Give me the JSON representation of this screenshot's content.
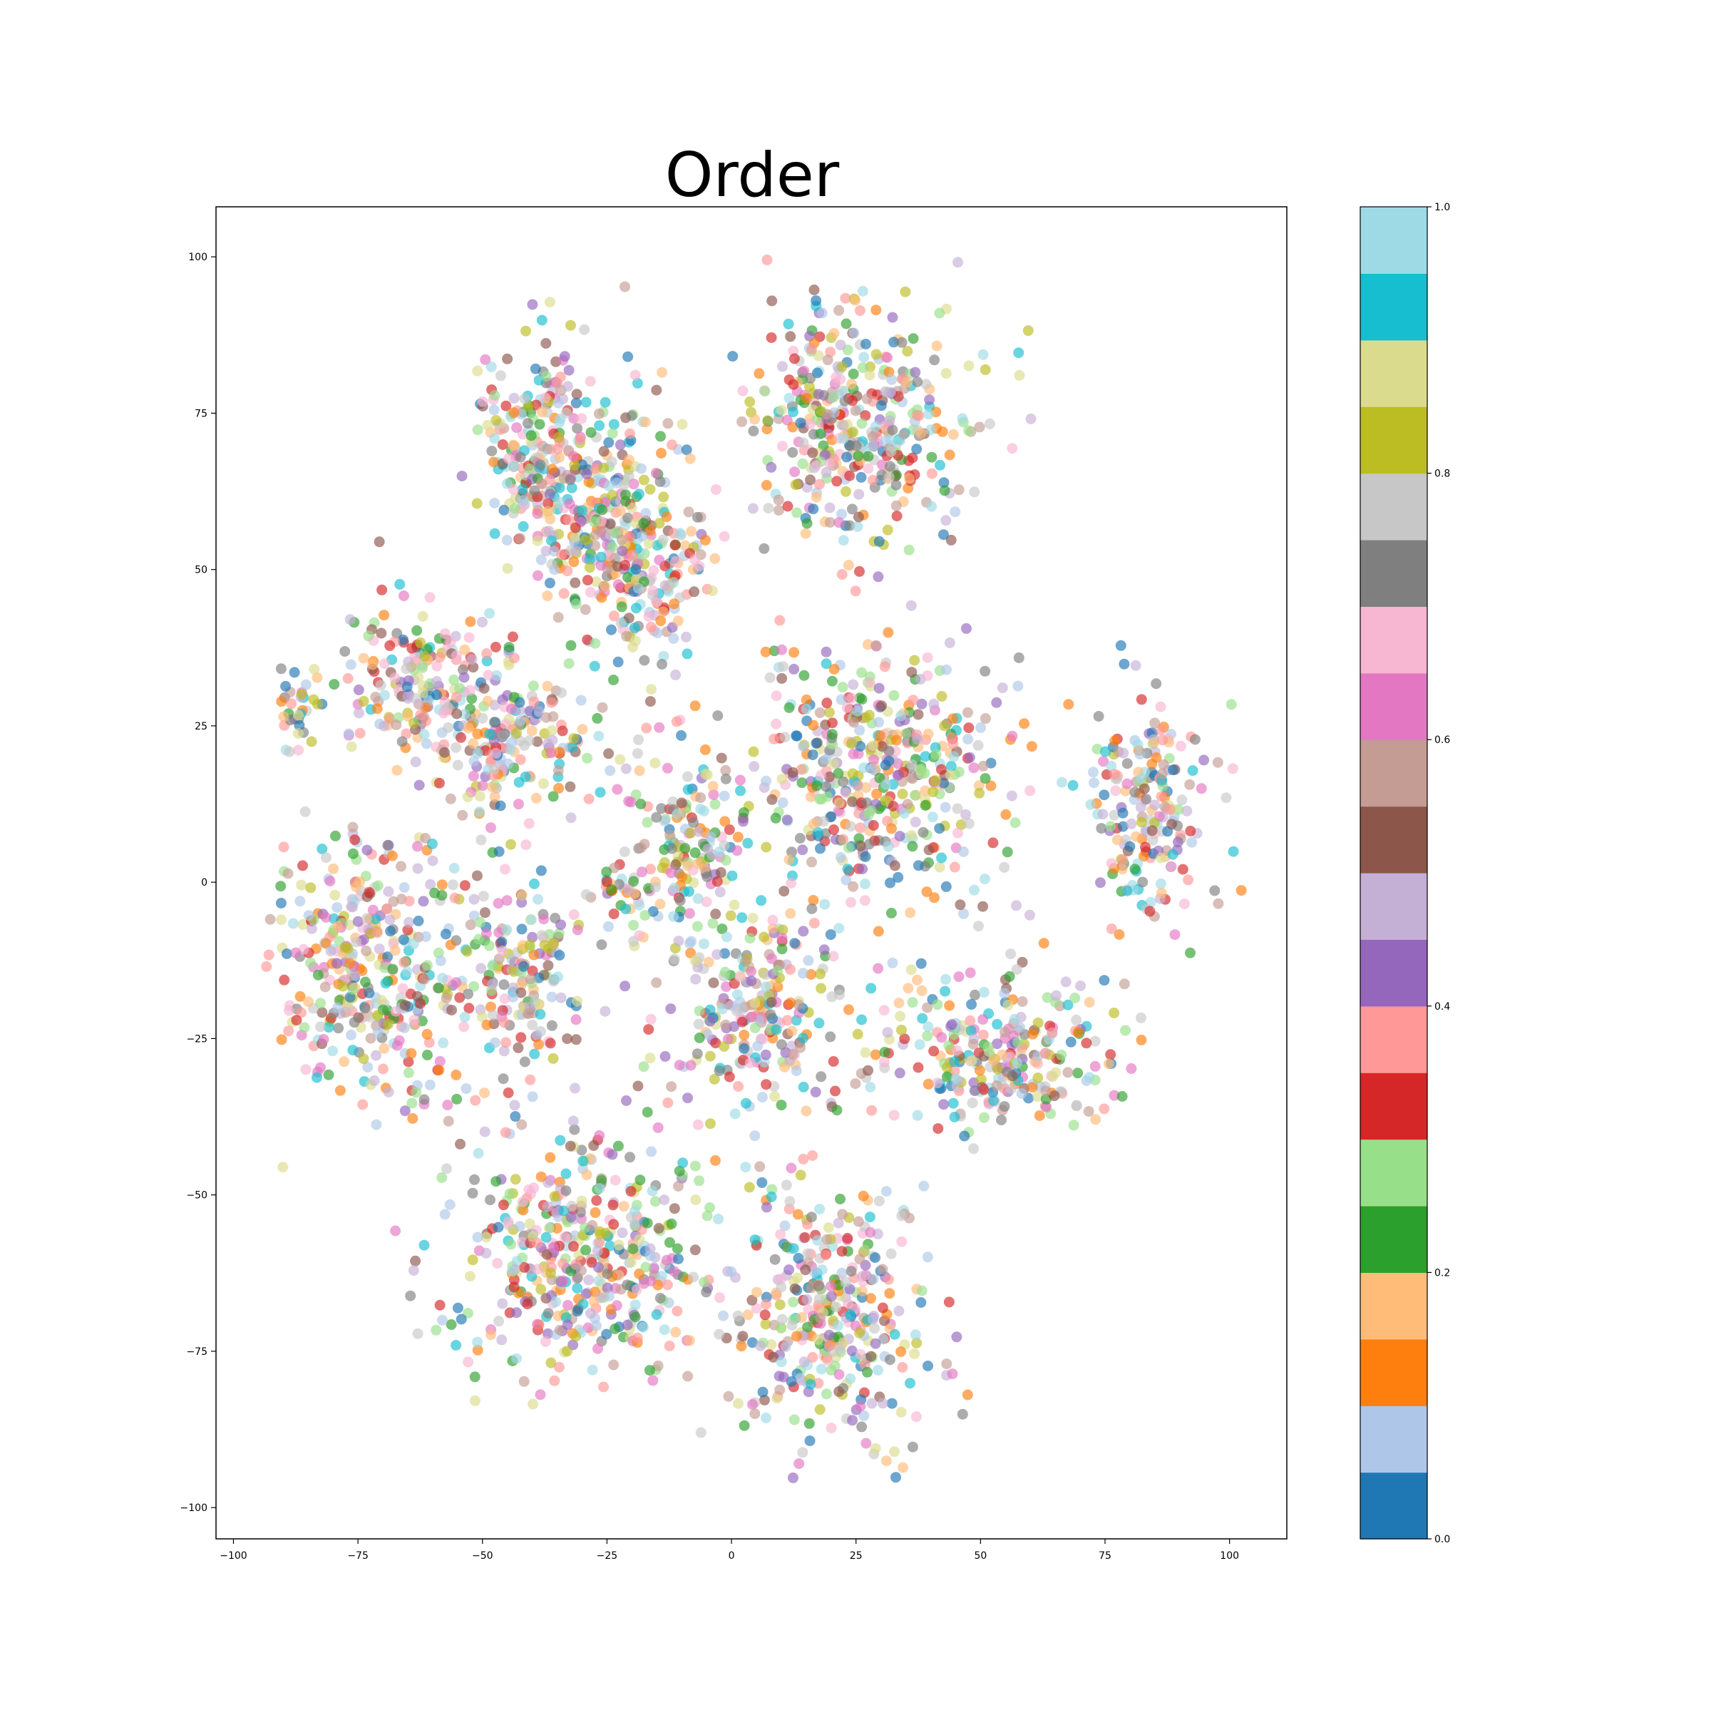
{
  "chart_data": {
    "type": "scatter",
    "title": "Order",
    "xlabel": "",
    "ylabel": "",
    "xlim": [
      -103.5,
      111.5
    ],
    "ylim": [
      -105,
      108
    ],
    "xticks": [
      -100,
      -75,
      -50,
      -25,
      0,
      25,
      50,
      75,
      100
    ],
    "yticks": [
      -100,
      -75,
      -50,
      -25,
      0,
      25,
      50,
      75,
      100
    ],
    "xtick_labels": [
      "−100",
      "−75",
      "−50",
      "−25",
      "0",
      "25",
      "50",
      "75",
      "100"
    ],
    "ytick_labels": [
      "−100",
      "−75",
      "−50",
      "−25",
      "0",
      "25",
      "50",
      "75",
      "100"
    ],
    "grid": false,
    "marker_alpha": 0.65,
    "colormap": {
      "name": "tab20",
      "range": [
        0,
        1
      ],
      "ticks": [
        0.0,
        0.2,
        0.4,
        0.6,
        0.8,
        1.0
      ],
      "tick_labels": [
        "0.0",
        "0.2",
        "0.4",
        "0.6",
        "0.8",
        "1.0"
      ],
      "colors": [
        "#1f77b4",
        "#aec7e8",
        "#ff7f0e",
        "#ffbb78",
        "#2ca02c",
        "#98df8a",
        "#d62728",
        "#ff9896",
        "#9467bd",
        "#c5b0d5",
        "#8c564b",
        "#c49c94",
        "#e377c2",
        "#f7b6d2",
        "#7f7f7f",
        "#c7c7c7",
        "#bcbd22",
        "#dbdb8d",
        "#17becf",
        "#9edae5"
      ]
    },
    "point_count": 4200,
    "clusters": [
      {
        "x": 25,
        "y": 73,
        "sx": 15,
        "sy": 13
      },
      {
        "x": -28,
        "y": 62,
        "sx": 11,
        "sy": 13
      },
      {
        "x": -40,
        "y": 72,
        "sx": 7,
        "sy": 10
      },
      {
        "x": -18,
        "y": 50,
        "sx": 9,
        "sy": 9
      },
      {
        "x": -62,
        "y": 32,
        "sx": 11,
        "sy": 8
      },
      {
        "x": -44,
        "y": 22,
        "sx": 10,
        "sy": 8
      },
      {
        "x": -87,
        "y": 28,
        "sx": 3,
        "sy": 5
      },
      {
        "x": 30,
        "y": 18,
        "sx": 15,
        "sy": 12
      },
      {
        "x": -8,
        "y": 6,
        "sx": 7,
        "sy": 9
      },
      {
        "x": -22,
        "y": 0,
        "sx": 4,
        "sy": 4
      },
      {
        "x": 84,
        "y": 12,
        "sx": 9,
        "sy": 13
      },
      {
        "x": -72,
        "y": -14,
        "sx": 14,
        "sy": 14
      },
      {
        "x": -42,
        "y": -15,
        "sx": 7,
        "sy": 9
      },
      {
        "x": 55,
        "y": -28,
        "sx": 15,
        "sy": 8
      },
      {
        "x": -30,
        "y": -60,
        "sx": 18,
        "sy": 13
      },
      {
        "x": 20,
        "y": -70,
        "sx": 13,
        "sy": 14
      },
      {
        "x": 5,
        "y": -20,
        "sx": 10,
        "sy": 10
      }
    ]
  }
}
